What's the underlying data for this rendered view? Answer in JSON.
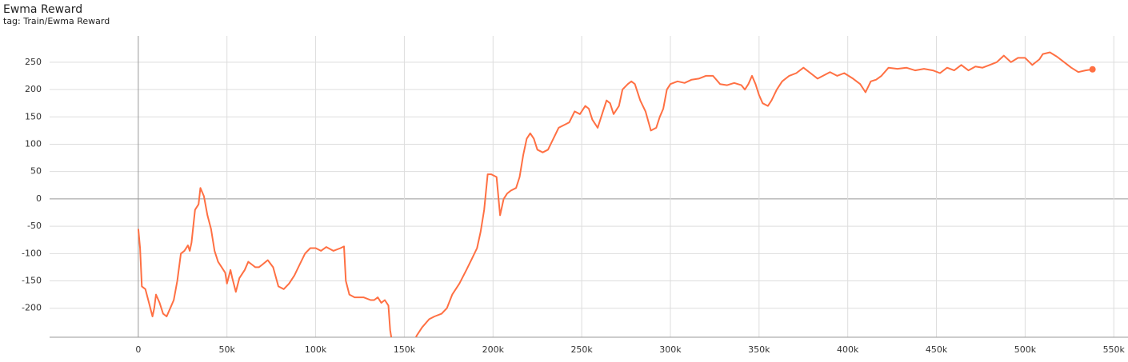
{
  "chart_data": {
    "type": "line",
    "title": "Ewma Reward",
    "subtitle": "tag: Train/Ewma Reward",
    "x": [
      0,
      1000,
      2000,
      4000,
      6000,
      8000,
      9000,
      10000,
      12000,
      14000,
      16000,
      18000,
      20000,
      22000,
      24000,
      26000,
      28000,
      29000,
      30000,
      32000,
      34000,
      35000,
      37000,
      39000,
      41000,
      43000,
      45000,
      47000,
      49000,
      50000,
      52000,
      53000,
      55000,
      57000,
      60000,
      62000,
      64000,
      66000,
      68000,
      70000,
      73000,
      76000,
      79000,
      82000,
      85000,
      88000,
      91000,
      94000,
      97000,
      100000,
      103000,
      106000,
      110000,
      114000,
      116000,
      117000,
      119000,
      122000,
      127000,
      131000,
      133000,
      135000,
      137000,
      139000,
      141000,
      142000,
      143000,
      150000,
      157000,
      160000,
      164000,
      167000,
      171000,
      174000,
      177000,
      181000,
      185000,
      188000,
      191000,
      193000,
      195000,
      197000,
      199000,
      202000,
      204000,
      206000,
      208000,
      210000,
      213000,
      215000,
      217000,
      219000,
      221000,
      223000,
      225000,
      228000,
      231000,
      234000,
      237000,
      240000,
      243000,
      246000,
      249000,
      252000,
      254000,
      256000,
      259000,
      262000,
      264000,
      266000,
      268000,
      271000,
      273000,
      276000,
      278000,
      280000,
      283000,
      286000,
      289000,
      292000,
      294000,
      296000,
      298000,
      300000,
      304000,
      308000,
      312000,
      316000,
      320000,
      324000,
      328000,
      332000,
      336000,
      340000,
      342000,
      344000,
      346000,
      348000,
      350000,
      352000,
      355000,
      357000,
      360000,
      363000,
      367000,
      371000,
      375000,
      379000,
      383000,
      386000,
      390000,
      394000,
      398000,
      403000,
      407000,
      410000,
      413000,
      416000,
      419000,
      423000,
      428000,
      433000,
      438000,
      443000,
      448000,
      452000,
      456000,
      460000,
      464000,
      468000,
      472000,
      476000,
      480000,
      484000,
      488000,
      492000,
      496000,
      500000,
      504000,
      508000,
      510000,
      514000,
      518000,
      522000,
      526000,
      530000,
      534000,
      538000
    ],
    "series": [
      {
        "color": "#ff7043",
        "values": [
          -55,
          -90,
          -160,
          -165,
          -190,
          -215,
          -200,
          -175,
          -190,
          -210,
          -215,
          -200,
          -185,
          -150,
          -100,
          -95,
          -85,
          -95,
          -80,
          -20,
          -10,
          20,
          5,
          -30,
          -55,
          -95,
          -115,
          -125,
          -135,
          -155,
          -130,
          -145,
          -170,
          -145,
          -130,
          -115,
          -120,
          -125,
          -125,
          -120,
          -112,
          -125,
          -160,
          -165,
          -155,
          -140,
          -120,
          -100,
          -90,
          -90,
          -95,
          -88,
          -95,
          -90,
          -87,
          -150,
          -175,
          -180,
          -180,
          -185,
          -185,
          -180,
          -190,
          -185,
          -195,
          -240,
          -260,
          -300,
          -250,
          -235,
          -220,
          -215,
          -210,
          -200,
          -175,
          -155,
          -130,
          -110,
          -90,
          -60,
          -20,
          45,
          45,
          40,
          -30,
          0,
          10,
          15,
          20,
          40,
          80,
          110,
          120,
          110,
          90,
          85,
          90,
          110,
          130,
          135,
          140,
          160,
          155,
          170,
          165,
          145,
          130,
          160,
          180,
          175,
          155,
          170,
          200,
          210,
          215,
          210,
          180,
          160,
          125,
          130,
          150,
          165,
          200,
          210,
          215,
          212,
          218,
          220,
          225,
          225,
          210,
          208,
          212,
          208,
          200,
          210,
          225,
          210,
          190,
          175,
          170,
          180,
          200,
          215,
          225,
          230,
          240,
          230,
          220,
          225,
          232,
          225,
          230,
          220,
          210,
          195,
          215,
          218,
          225,
          240,
          238,
          240,
          235,
          238,
          235,
          230,
          240,
          235,
          245,
          235,
          242,
          240,
          245,
          250,
          262,
          250,
          258,
          258,
          245,
          255,
          265,
          268,
          260,
          250,
          240,
          232,
          235,
          237
        ]
      }
    ],
    "xlim": [
      -50000,
      558000
    ],
    "ylim": [
      -253,
      298
    ],
    "xticks": [
      0,
      {
        "value": 50000,
        "label": "50k"
      },
      {
        "value": 100000,
        "label": "100k"
      },
      {
        "value": 150000,
        "label": "150k"
      },
      {
        "value": 200000,
        "label": "200k"
      },
      {
        "value": 250000,
        "label": "250k"
      },
      {
        "value": 300000,
        "label": "300k"
      },
      {
        "value": 350000,
        "label": "350k"
      },
      {
        "value": 400000,
        "label": "400k"
      },
      {
        "value": 450000,
        "label": "450k"
      },
      {
        "value": 500000,
        "label": "500k"
      },
      {
        "value": 550000,
        "label": "550k"
      }
    ],
    "yticks": [
      -200,
      -150,
      -100,
      -50,
      0,
      50,
      100,
      150,
      200,
      250
    ],
    "grid": true
  }
}
